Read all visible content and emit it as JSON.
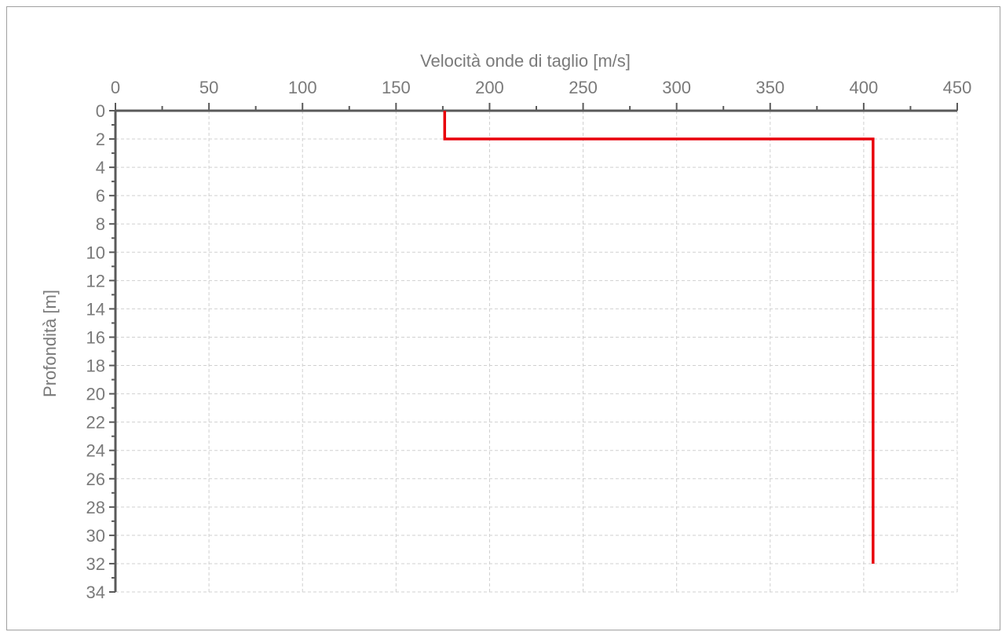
{
  "chart_data": {
    "type": "line",
    "title": "",
    "xlabel": "Velocità onde di taglio [m/s]",
    "ylabel": "Profondità [m]",
    "x_axis_position": "top",
    "y_axis_inverted": true,
    "xlim": [
      0,
      450
    ],
    "ylim": [
      0,
      34
    ],
    "x_ticks": [
      "0",
      "50",
      "100",
      "150",
      "200",
      "250",
      "300",
      "350",
      "400",
      "450"
    ],
    "y_ticks": [
      "0",
      "2",
      "4",
      "6",
      "8",
      "10",
      "12",
      "14",
      "16",
      "18",
      "20",
      "22",
      "24",
      "26",
      "28",
      "30",
      "32",
      "34"
    ],
    "grid": true,
    "legend": "none",
    "series": [
      {
        "color": "#e8000b",
        "points": [
          {
            "x": 176,
            "y": 0
          },
          {
            "x": 176,
            "y": 2
          },
          {
            "x": 405,
            "y": 2
          },
          {
            "x": 405,
            "y": 32
          }
        ]
      }
    ]
  },
  "colors": {
    "axis": "#5a5a5a",
    "grid": "#d0d0d0",
    "text": "#7a7a7a",
    "series": "#e8000b"
  }
}
